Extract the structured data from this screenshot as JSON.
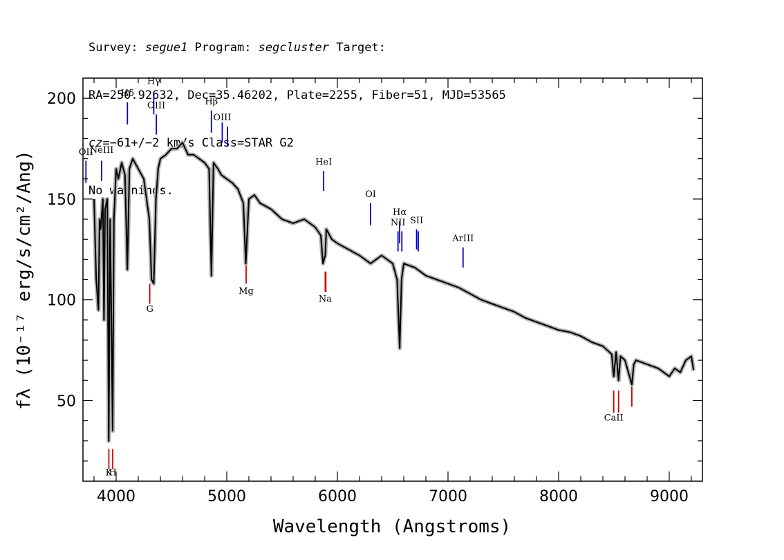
{
  "header": {
    "survey_label": "Survey: ",
    "survey": "segue1",
    "program_label": " Program: ",
    "program": "segcluster",
    "target_label": " Target:",
    "line2": "RA=250.92632, Dec=35.46202, Plate=2255, Fiber=51, MJD=53565",
    "cz_label": "cz",
    "cz_value": "=−61+/−2",
    "cz_rest": " km/s Class=STAR G2",
    "line4": "No warnings."
  },
  "chart_data": {
    "type": "line",
    "title": "",
    "xlabel": "Wavelength (Angstroms)",
    "ylabel": "fλ (10⁻¹⁷ erg/s/cm²/Ang)",
    "xlim": [
      3700,
      9300
    ],
    "ylim": [
      10,
      210
    ],
    "xticks": [
      4000,
      5000,
      6000,
      7000,
      8000,
      9000
    ],
    "yticks": [
      50,
      100,
      150,
      200
    ],
    "grid": false,
    "colors": {
      "spectrum": "#000000",
      "error": "#b0b0b0",
      "emission": "#0000cc",
      "absorption": "#cc0000"
    },
    "series": [
      {
        "x": [
          3800,
          3820,
          3840,
          3850,
          3860,
          3880,
          3890,
          3900,
          3920,
          3933,
          3945,
          3955,
          3968,
          3980,
          4000,
          4020,
          4050,
          4080,
          4101,
          4120,
          4150,
          4200,
          4250,
          4300,
          4320,
          4340,
          4360,
          4380,
          4400,
          4450,
          4500,
          4550,
          4600,
          4650,
          4700,
          4750,
          4800,
          4840,
          4861,
          4880,
          4920,
          4950,
          5000,
          5050,
          5100,
          5150,
          5172,
          5200,
          5250,
          5300,
          5400,
          5500,
          5600,
          5700,
          5800,
          5850,
          5870,
          5890,
          5900,
          5950,
          6000,
          6100,
          6200,
          6300,
          6400,
          6500,
          6540,
          6563,
          6580,
          6600,
          6700,
          6800,
          6900,
          7000,
          7100,
          7200,
          7300,
          7400,
          7500,
          7600,
          7700,
          7800,
          7900,
          8000,
          8100,
          8200,
          8300,
          8400,
          8480,
          8498,
          8520,
          8542,
          8560,
          8600,
          8662,
          8680,
          8700,
          8800,
          8900,
          8950,
          9000,
          9050,
          9100,
          9150,
          9200,
          9220
        ],
        "y": [
          150,
          110,
          95,
          140,
          135,
          150,
          90,
          145,
          150,
          30,
          140,
          100,
          35,
          140,
          165,
          160,
          168,
          162,
          115,
          165,
          170,
          165,
          160,
          140,
          110,
          108,
          150,
          165,
          170,
          172,
          175,
          175,
          178,
          172,
          172,
          170,
          168,
          165,
          112,
          168,
          165,
          162,
          160,
          158,
          155,
          148,
          118,
          150,
          152,
          148,
          145,
          140,
          138,
          140,
          136,
          132,
          118,
          122,
          135,
          130,
          128,
          125,
          122,
          118,
          122,
          118,
          110,
          76,
          110,
          118,
          116,
          112,
          110,
          108,
          106,
          103,
          100,
          98,
          96,
          94,
          91,
          89,
          87,
          85,
          84,
          82,
          79,
          77,
          73,
          62,
          74,
          60,
          72,
          70,
          58,
          68,
          70,
          68,
          66,
          64,
          62,
          66,
          64,
          70,
          72,
          65
        ]
      }
    ],
    "emission_lines": [
      {
        "label": "OII",
        "wavelength": 3727,
        "top": 169,
        "bottom": 158,
        "label_y": 172
      },
      {
        "label": "NeIII",
        "wavelength": 3869,
        "top": 169,
        "bottom": 159,
        "label_y": 173
      },
      {
        "label": "Hδ",
        "wavelength": 4102,
        "top": 198,
        "bottom": 187,
        "label_y": 201
      },
      {
        "label": "Hγ",
        "wavelength": 4340,
        "top": 203,
        "bottom": 192,
        "label_y": 207
      },
      {
        "label": "OIII",
        "wavelength": 4363,
        "top": 192,
        "bottom": 182,
        "label_y": 195
      },
      {
        "label": "Hβ",
        "wavelength": 4861,
        "top": 194,
        "bottom": 183,
        "label_y": 197
      },
      {
        "label": "OIII",
        "wavelength": 4959,
        "top": 188,
        "bottom": 178,
        "label_y": 189
      },
      {
        "label": "OIII",
        "wavelength": 5007,
        "top": 186,
        "bottom": 176,
        "label_y": 0
      },
      {
        "label": "HeI",
        "wavelength": 5876,
        "top": 164,
        "bottom": 154,
        "label_y": 167
      },
      {
        "label": "OI",
        "wavelength": 6300,
        "top": 148,
        "bottom": 137,
        "label_y": 151
      },
      {
        "label": "NII",
        "wavelength": 6548,
        "top": 134,
        "bottom": 124,
        "label_y": 137
      },
      {
        "label": "Hα",
        "wavelength": 6563,
        "top": 139,
        "bottom": 128,
        "label_y": 142
      },
      {
        "label": "NII",
        "wavelength": 6583,
        "top": 134,
        "bottom": 124,
        "label_y": 0
      },
      {
        "label": "SII",
        "wavelength": 6716,
        "top": 135,
        "bottom": 125,
        "label_y": 138
      },
      {
        "label": "SII",
        "wavelength": 6731,
        "top": 134,
        "bottom": 124,
        "label_y": 0
      },
      {
        "label": "ArIII",
        "wavelength": 7136,
        "top": 126,
        "bottom": 116,
        "label_y": 129
      }
    ],
    "absorption_lines": [
      {
        "label": "K",
        "wavelength": 3934,
        "top": 26,
        "bottom": 16,
        "label_y": 13
      },
      {
        "label": "H",
        "wavelength": 3969,
        "top": 26,
        "bottom": 16,
        "label_y": 13
      },
      {
        "label": "G",
        "wavelength": 4304,
        "top": 108,
        "bottom": 98,
        "label_y": 94
      },
      {
        "label": "Mg",
        "wavelength": 5175,
        "top": 118,
        "bottom": 108,
        "label_y": 103
      },
      {
        "label": "Na",
        "wavelength": 5890,
        "top": 114,
        "bottom": 104,
        "label_y": 99
      },
      {
        "label": "D",
        "wavelength": 5896,
        "top": 114,
        "bottom": 104,
        "label_y": 0
      },
      {
        "label": "CaII",
        "wavelength": 8498,
        "top": 55,
        "bottom": 44,
        "label_y": 40
      },
      {
        "label": "CaII",
        "wavelength": 8542,
        "top": 55,
        "bottom": 44,
        "label_y": 0
      },
      {
        "label": "CaII",
        "wavelength": 8662,
        "top": 57,
        "bottom": 47,
        "label_y": 0
      }
    ]
  }
}
